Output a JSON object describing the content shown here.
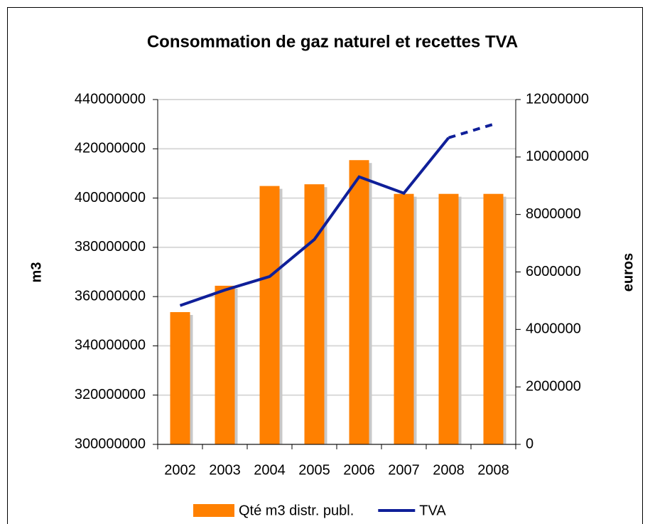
{
  "chart_data": {
    "type": "bar_line",
    "title": "Consommation de gaz naturel et recettes TVA",
    "y_label": "m3",
    "y2_label": "euros",
    "categories": [
      "2002",
      "2003",
      "2004",
      "2005",
      "2006",
      "2007",
      "2008",
      "2008"
    ],
    "series": [
      {
        "name": "Qté m3 distr. publ.",
        "color": "#ff8000",
        "type": "bar",
        "values": [
          353700000,
          364400000,
          404900000,
          405600000,
          415400000,
          401700000,
          401700000,
          401700000
        ]
      },
      {
        "name": "TVA",
        "color": "#0f1f99",
        "type": "line",
        "axis": "y2",
        "last_segment_dashed": true,
        "values": [
          4830000,
          5370000,
          5840000,
          7130000,
          9310000,
          8740000,
          10670000,
          11140000
        ]
      }
    ],
    "ylim": [
      300000000,
      440000000
    ],
    "yticks": [
      300000000,
      320000000,
      340000000,
      360000000,
      380000000,
      400000000,
      420000000,
      440000000
    ],
    "y2lim": [
      0,
      12000000
    ],
    "y2ticks": [
      0,
      2000000,
      4000000,
      6000000,
      8000000,
      10000000,
      12000000
    ],
    "grid": true,
    "legend": "bottom"
  }
}
